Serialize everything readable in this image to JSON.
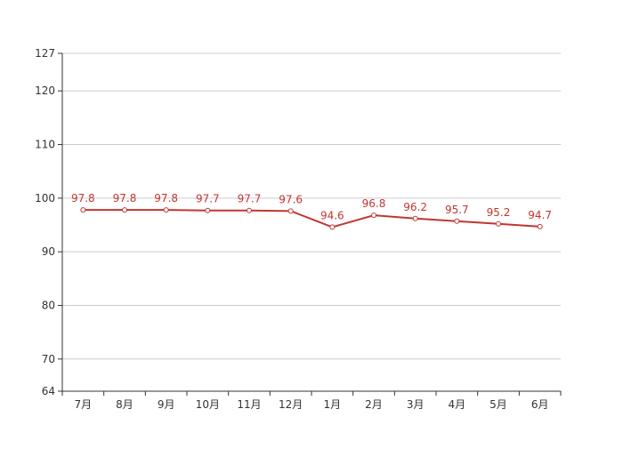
{
  "chart_data": {
    "type": "line",
    "title": "",
    "xlabel": "",
    "ylabel": "",
    "categories": [
      "7月",
      "8月",
      "9月",
      "10月",
      "11月",
      "12月",
      "1月",
      "2月",
      "3月",
      "4月",
      "5月",
      "6月"
    ],
    "series": [
      {
        "values": [
          97.8,
          97.8,
          97.8,
          97.7,
          97.7,
          97.6,
          94.6,
          96.8,
          96.2,
          95.7,
          95.2,
          94.7
        ],
        "color": "#c23531"
      }
    ],
    "ylim": [
      64,
      127
    ],
    "yticks": [
      64,
      70,
      80,
      90,
      100,
      110,
      120,
      127
    ],
    "grid": true,
    "legend": "none"
  }
}
